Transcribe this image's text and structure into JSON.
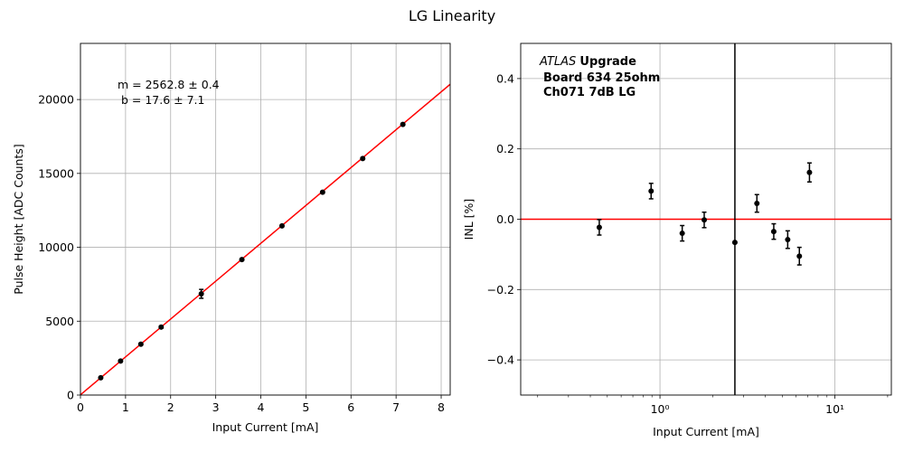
{
  "figure_title": "LG Linearity",
  "colors": {
    "fit_line": "#ff0000",
    "points": "#000000",
    "grid": "#b0b0b0",
    "vline": "#000000"
  },
  "chart_data": [
    {
      "type": "scatter",
      "xlabel": "Input Current [mA]",
      "ylabel": "Pulse Height [ADC Counts]",
      "xlim": [
        0,
        8.2
      ],
      "ylim": [
        0,
        23800
      ],
      "xticks": [
        0,
        1,
        2,
        3,
        4,
        5,
        6,
        7,
        8
      ],
      "yticks": [
        0,
        5000,
        10000,
        15000,
        20000
      ],
      "grid": true,
      "annotation": [
        "m = 2562.8 ± 0.4",
        "b = 17.6 ± 7.1"
      ],
      "fit": {
        "m": 2562.8,
        "b": 17.6
      },
      "points": [
        {
          "x": 0.45,
          "y": 1170,
          "yerr": 60
        },
        {
          "x": 0.89,
          "y": 2300,
          "yerr": 60
        },
        {
          "x": 1.34,
          "y": 3440,
          "yerr": 60
        },
        {
          "x": 1.79,
          "y": 4600,
          "yerr": 80
        },
        {
          "x": 2.68,
          "y": 6850,
          "yerr": 300
        },
        {
          "x": 3.58,
          "y": 9170,
          "yerr": 60
        },
        {
          "x": 4.47,
          "y": 11450,
          "yerr": 60
        },
        {
          "x": 5.37,
          "y": 13730,
          "yerr": 60
        },
        {
          "x": 6.26,
          "y": 16010,
          "yerr": 60
        },
        {
          "x": 7.15,
          "y": 18320,
          "yerr": 60
        }
      ]
    },
    {
      "type": "scatter",
      "xscale": "log",
      "xlabel": "Input Current [mA]",
      "ylabel": "INL [%]",
      "xlim": [
        0.16,
        21
      ],
      "ylim": [
        -0.5,
        0.5
      ],
      "xticks": [
        {
          "value": 1,
          "label": "10⁰"
        },
        {
          "value": 10,
          "label": "10¹"
        }
      ],
      "yticks": [
        -0.4,
        -0.2,
        0.0,
        0.2,
        0.4
      ],
      "yticklabels": [
        "−0.4",
        "−0.2",
        "0.0",
        "0.2",
        "0.4"
      ],
      "grid": true,
      "hline_y": 0,
      "vline_x": 2.68,
      "annotation": {
        "italic": "ATLAS",
        "bold": "Upgrade",
        "lines": [
          "Board 634 25ohm",
          "Ch071 7dB LG"
        ]
      },
      "points": [
        {
          "x": 0.45,
          "y": -0.023,
          "yerr": 0.022
        },
        {
          "x": 0.89,
          "y": 0.08,
          "yerr": 0.022
        },
        {
          "x": 1.34,
          "y": -0.04,
          "yerr": 0.022
        },
        {
          "x": 1.79,
          "y": -0.002,
          "yerr": 0.022
        },
        {
          "x": 2.68,
          "y": -0.066,
          "yerr": 0.0
        },
        {
          "x": 3.58,
          "y": 0.045,
          "yerr": 0.025
        },
        {
          "x": 4.47,
          "y": -0.035,
          "yerr": 0.022
        },
        {
          "x": 5.37,
          "y": -0.058,
          "yerr": 0.025
        },
        {
          "x": 6.26,
          "y": -0.105,
          "yerr": 0.025
        },
        {
          "x": 7.15,
          "y": 0.133,
          "yerr": 0.027
        }
      ]
    }
  ]
}
